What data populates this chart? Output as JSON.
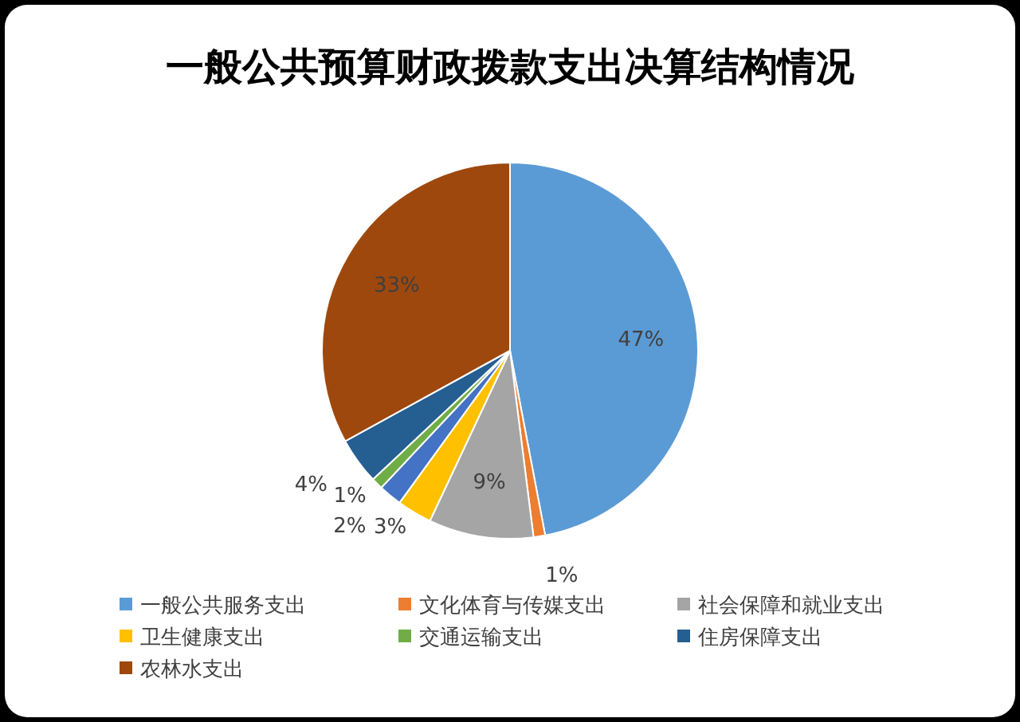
{
  "chart_data": {
    "type": "pie",
    "title": "一般公共预算财政拨款支出决算结构情况",
    "categories": [
      "一般公共服务支出",
      "文化体育与传媒支出",
      "社会保障和就业支出",
      "卫生健康支出",
      null,
      "交通运输支出",
      "住房保障支出",
      "农林水支出"
    ],
    "values": [
      47,
      1,
      9,
      3,
      2,
      1,
      4,
      33
    ],
    "value_labels": [
      "47%",
      "1%",
      "9%",
      "3%",
      "2%",
      "1%",
      "4%",
      "33%"
    ],
    "colors": [
      "#5b9bd5",
      "#ed7d31",
      "#a5a5a5",
      "#ffc000",
      "#4472c4",
      "#70ad47",
      "#255e91",
      "#9e480e"
    ],
    "legend": "bottom"
  }
}
